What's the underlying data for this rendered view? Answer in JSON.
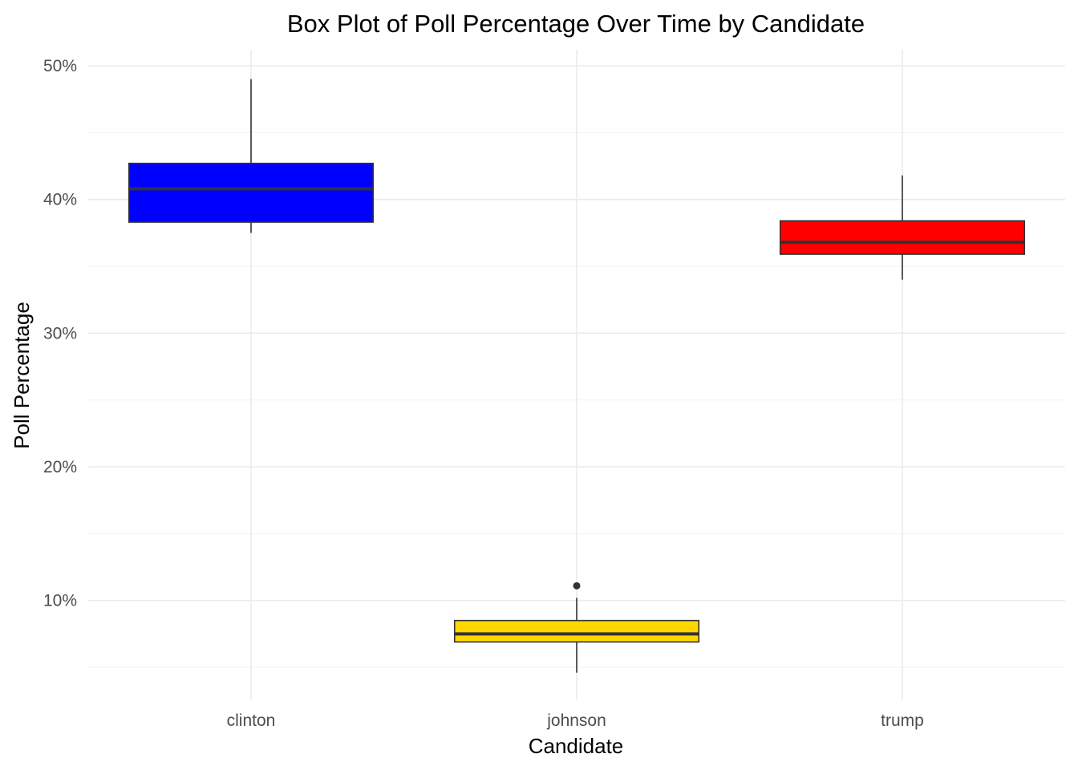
{
  "chart_data": {
    "type": "box",
    "title": "Box Plot of Poll Percentage Over Time by Candidate",
    "xlabel": "Candidate",
    "ylabel": "Poll Percentage",
    "categories": [
      "clinton",
      "johnson",
      "trump"
    ],
    "y_tick_values": [
      10,
      20,
      30,
      40,
      50
    ],
    "y_tick_labels": [
      "10%",
      "20%",
      "30%",
      "40%",
      "50%"
    ],
    "ylim": [
      2.6,
      51.2
    ],
    "grid": true,
    "legend": "none",
    "boxes": [
      {
        "category": "clinton",
        "min": 37.5,
        "q1": 38.3,
        "median": 40.8,
        "q3": 42.7,
        "max": 49.0,
        "outliers": [],
        "fill": "#0000ff"
      },
      {
        "category": "johnson",
        "min": 4.6,
        "q1": 6.9,
        "median": 7.5,
        "q3": 8.5,
        "max": 10.2,
        "outliers": [
          11.1
        ],
        "fill": "#ffd700"
      },
      {
        "category": "trump",
        "min": 34.0,
        "q1": 35.9,
        "median": 36.8,
        "q3": 38.4,
        "max": 41.8,
        "outliers": [],
        "fill": "#ff0000"
      }
    ],
    "colors": {
      "box_outline": "#333333",
      "whisker": "#333333",
      "median_line": "#333333",
      "outlier": "#333333"
    }
  }
}
